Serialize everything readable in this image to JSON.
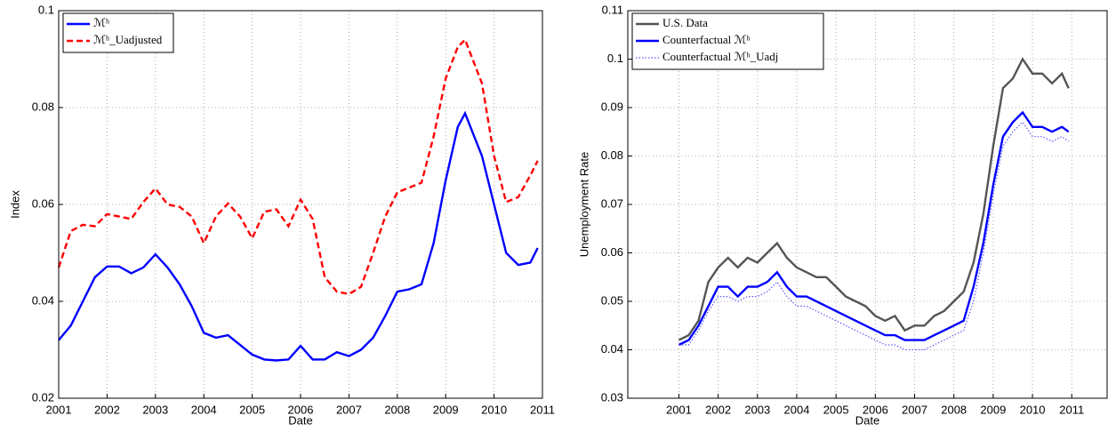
{
  "chart_data": [
    {
      "type": "line",
      "x_label": "Date",
      "y_label": "Index",
      "x": [
        2001.0,
        2001.25,
        2001.5,
        2001.75,
        2002.0,
        2002.25,
        2002.5,
        2002.75,
        2003.0,
        2003.25,
        2003.5,
        2003.75,
        2004.0,
        2004.25,
        2004.5,
        2004.75,
        2005.0,
        2005.25,
        2005.5,
        2005.75,
        2006.0,
        2006.25,
        2006.5,
        2006.75,
        2007.0,
        2007.25,
        2007.5,
        2007.75,
        2008.0,
        2008.25,
        2008.5,
        2008.75,
        2009.0,
        2009.25,
        2009.4,
        2009.75,
        2010.0,
        2010.25,
        2010.5,
        2010.75,
        2010.9
      ],
      "series": [
        {
          "name": "ℳʰ",
          "color": "#0000ff",
          "style": "solid",
          "values": [
            0.032,
            0.035,
            0.04,
            0.045,
            0.0472,
            0.0472,
            0.0458,
            0.047,
            0.0497,
            0.047,
            0.0435,
            0.039,
            0.0335,
            0.0325,
            0.033,
            0.031,
            0.029,
            0.028,
            0.0278,
            0.028,
            0.0308,
            0.028,
            0.028,
            0.0295,
            0.0287,
            0.03,
            0.0325,
            0.037,
            0.042,
            0.0425,
            0.0435,
            0.052,
            0.065,
            0.076,
            0.0788,
            0.07,
            0.06,
            0.05,
            0.0475,
            0.048,
            0.051
          ]
        },
        {
          "name": "ℳʰ_Uadjusted",
          "color": "#ff0000",
          "style": "dashed",
          "values": [
            0.047,
            0.0545,
            0.0558,
            0.0555,
            0.058,
            0.0575,
            0.057,
            0.0605,
            0.0633,
            0.06,
            0.0595,
            0.0575,
            0.052,
            0.0575,
            0.0602,
            0.0575,
            0.053,
            0.0585,
            0.059,
            0.0555,
            0.061,
            0.057,
            0.045,
            0.042,
            0.0415,
            0.043,
            0.05,
            0.0575,
            0.0625,
            0.0635,
            0.0645,
            0.074,
            0.086,
            0.0925,
            0.094,
            0.085,
            0.07,
            0.0605,
            0.0615,
            0.066,
            0.069
          ]
        }
      ],
      "xlim": [
        2001,
        2011
      ],
      "xticks": [
        2001,
        2002,
        2003,
        2004,
        2005,
        2006,
        2007,
        2008,
        2009,
        2010,
        2011
      ],
      "ylim": [
        0.02,
        0.1
      ],
      "yticks": [
        0.02,
        0.04,
        0.06,
        0.08,
        0.1
      ],
      "grid": true,
      "legend": "upper left"
    },
    {
      "type": "line",
      "x_label": "Date",
      "y_label": "Unemployment Rate",
      "x": [
        2001.0,
        2001.25,
        2001.5,
        2001.75,
        2002.0,
        2002.25,
        2002.5,
        2002.75,
        2003.0,
        2003.25,
        2003.5,
        2003.75,
        2004.0,
        2004.25,
        2004.5,
        2004.75,
        2005.0,
        2005.25,
        2005.5,
        2005.75,
        2006.0,
        2006.25,
        2006.5,
        2006.75,
        2007.0,
        2007.25,
        2007.5,
        2007.75,
        2008.0,
        2008.25,
        2008.5,
        2008.75,
        2009.0,
        2009.25,
        2009.5,
        2009.75,
        2010.0,
        2010.25,
        2010.5,
        2010.75,
        2010.92
      ],
      "series": [
        {
          "name": "U.S. Data",
          "color": "#555555",
          "style": "solid",
          "values": [
            0.042,
            0.043,
            0.046,
            0.054,
            0.057,
            0.059,
            0.057,
            0.059,
            0.058,
            0.06,
            0.062,
            0.059,
            0.057,
            0.056,
            0.055,
            0.055,
            0.053,
            0.051,
            0.05,
            0.049,
            0.047,
            0.046,
            0.047,
            0.044,
            0.045,
            0.045,
            0.047,
            0.048,
            0.05,
            0.052,
            0.058,
            0.068,
            0.082,
            0.094,
            0.096,
            0.1,
            0.097,
            0.097,
            0.095,
            0.097,
            0.094
          ]
        },
        {
          "name": "Counterfactual ℳʰ",
          "color": "#0000ff",
          "style": "solid",
          "values": [
            0.041,
            0.042,
            0.045,
            0.049,
            0.053,
            0.053,
            0.051,
            0.053,
            0.053,
            0.054,
            0.056,
            0.053,
            0.051,
            0.051,
            0.05,
            0.049,
            0.048,
            0.047,
            0.046,
            0.045,
            0.044,
            0.043,
            0.043,
            0.042,
            0.042,
            0.042,
            0.043,
            0.044,
            0.045,
            0.046,
            0.053,
            0.062,
            0.074,
            0.084,
            0.087,
            0.089,
            0.086,
            0.086,
            0.085,
            0.086,
            0.085
          ]
        },
        {
          "name": "Counterfactual ℳʰ_Uadj",
          "color": "#5a5aff",
          "style": "dotted",
          "values": [
            0.041,
            0.041,
            0.044,
            0.048,
            0.051,
            0.051,
            0.05,
            0.051,
            0.051,
            0.052,
            0.054,
            0.051,
            0.049,
            0.049,
            0.048,
            0.047,
            0.046,
            0.045,
            0.044,
            0.043,
            0.042,
            0.041,
            0.041,
            0.04,
            0.04,
            0.04,
            0.041,
            0.042,
            0.043,
            0.044,
            0.05,
            0.06,
            0.072,
            0.082,
            0.085,
            0.087,
            0.084,
            0.084,
            0.083,
            0.084,
            0.083
          ]
        }
      ],
      "xlim": [
        1999.7,
        2011.9
      ],
      "xticks": [
        2001,
        2002,
        2003,
        2004,
        2005,
        2006,
        2007,
        2008,
        2009,
        2010,
        2011
      ],
      "ylim": [
        0.03,
        0.11
      ],
      "yticks": [
        0.03,
        0.04,
        0.05,
        0.06,
        0.07,
        0.08,
        0.09,
        0.1,
        0.11
      ],
      "grid": true,
      "legend": "upper left"
    }
  ]
}
